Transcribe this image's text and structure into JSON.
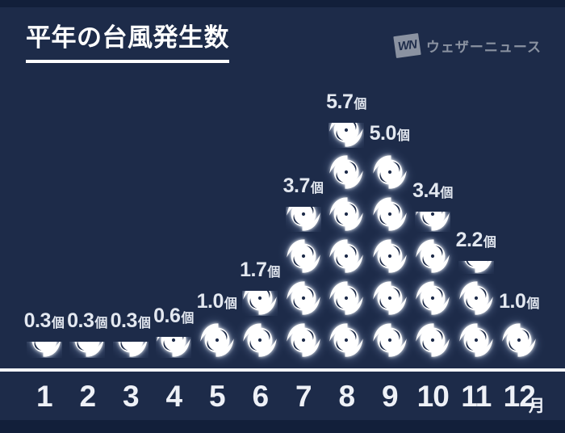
{
  "title": "平年の台風発生数",
  "logo": {
    "mark": "WN",
    "name": "ウェザーニュース"
  },
  "unit_suffix": "個",
  "month_suffix": "月",
  "colors": {
    "background": "#1d2b49",
    "edge_band": "#121f3a",
    "icon": "#ffffff",
    "label_text": "#e3e8f0",
    "axis_line": "#f3f5f9",
    "month_text": "#eef1f7",
    "logo_gray": "#8a92a1",
    "title_text": "#ffffff"
  },
  "chart_data": {
    "type": "bar",
    "subtype": "pictograph",
    "title": "平年の台風発生数",
    "icon": "typhoon-icon",
    "icon_unit": 1,
    "categories": [
      "1",
      "2",
      "3",
      "4",
      "5",
      "6",
      "7",
      "8",
      "9",
      "10",
      "11",
      "12"
    ],
    "values": [
      0.3,
      0.3,
      0.3,
      0.6,
      1.0,
      1.7,
      3.7,
      5.7,
      5.0,
      3.4,
      2.2,
      1.0
    ],
    "value_labels": [
      "0.3個",
      "0.3個",
      "0.3個",
      "0.6個",
      "1.0個",
      "1.7個",
      "3.7個",
      "5.7個",
      "5.0個",
      "3.4個",
      "2.2個",
      "1.0個"
    ],
    "xlabel": "月",
    "ylabel": "",
    "ylim": [
      0,
      6
    ],
    "grid": false,
    "legend": false
  }
}
